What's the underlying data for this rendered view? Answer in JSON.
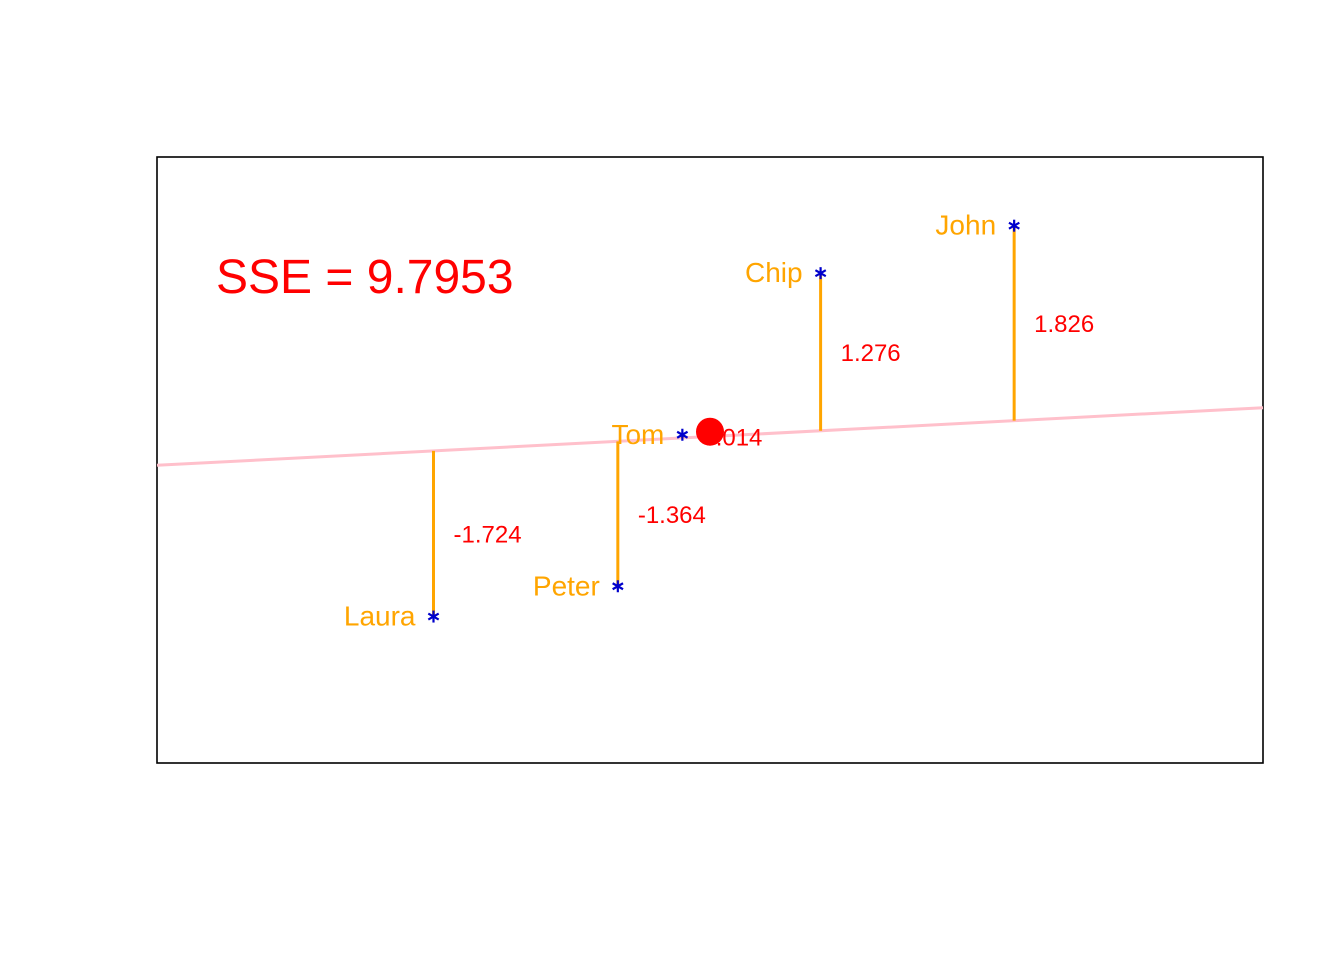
{
  "chart_data": {
    "type": "scatter",
    "title": "",
    "xlabel": "",
    "ylabel": "",
    "grid": false,
    "axes_shown": false,
    "xlim": [
      0.5,
      6.5
    ],
    "ylim": [
      -3.0,
      3.0
    ],
    "annotation": "SSE = 9.7953",
    "points": [
      {
        "name": "Laura",
        "x": 2.0,
        "y": -1.55,
        "residual": -1.724
      },
      {
        "name": "Peter",
        "x": 3.0,
        "y": -1.25,
        "residual": -1.364
      },
      {
        "name": "Tom",
        "x": 3.35,
        "y": 0.25,
        "residual": 0.014
      },
      {
        "name": "Chip",
        "x": 4.1,
        "y": 1.85,
        "residual": 1.276
      },
      {
        "name": "John",
        "x": 5.15,
        "y": 2.32,
        "residual": 1.826
      }
    ],
    "mean_point": {
      "x": 3.5,
      "y": 0.28
    },
    "fit_line": {
      "intercept": -0.1,
      "slope": 0.095
    },
    "colors": {
      "points": "#0000cc",
      "names": "#ffa500",
      "residual_lines": "#ffa500",
      "residual_labels": "#ff0000",
      "fit_line": "#ffc0cb",
      "mean_point": "#ff0000",
      "annotation": "#ff0000",
      "frame": "#000000"
    }
  }
}
